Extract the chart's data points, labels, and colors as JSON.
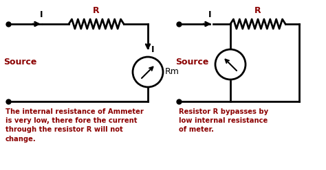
{
  "bg_color": "#ffffff",
  "wire_color": "#000000",
  "label_color": "#8B0000",
  "source_color": "#8B0000",
  "text_color": "#8B0000",
  "left_circuit": {
    "source_label": "Source",
    "I_label": "I",
    "R_label": "R",
    "Rm_label": "Rm",
    "I2_label": "I"
  },
  "right_circuit": {
    "source_label": "Source",
    "I_label": "I",
    "R_label": "R"
  },
  "bottom_text_left": "The internal resistance of Ammeter\nis very low, there fore the current\nthrough the resistor R will not\nchange.",
  "bottom_text_right": "Resistor R bypasses by\nlow internal resistance\nof meter."
}
